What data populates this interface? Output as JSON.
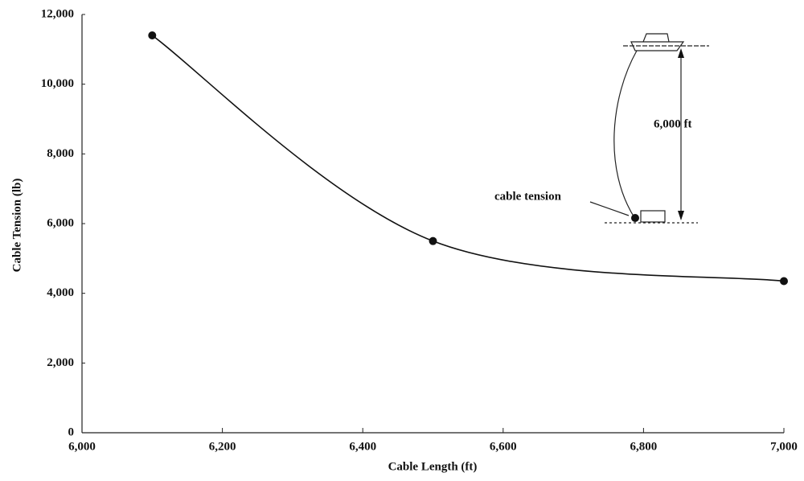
{
  "chart_data": {
    "type": "line",
    "x_label": "Cable Length (ft)",
    "y_label": "Cable Tension (lb)",
    "x": [
      6100,
      6500,
      7000
    ],
    "series": [
      {
        "color": "#111111",
        "values": [
          11400,
          5500,
          4350
        ]
      }
    ],
    "xlim": [
      6000,
      7000
    ],
    "xticks": [
      {
        "value": 6000,
        "label": "6,000"
      },
      {
        "value": 6200,
        "label": "6,200"
      },
      {
        "value": 6400,
        "label": "6,400"
      },
      {
        "value": 6600,
        "label": "6,600"
      },
      {
        "value": 6800,
        "label": "6,800"
      },
      {
        "value": 7000,
        "label": "7,000"
      }
    ],
    "ylim": [
      0,
      12000
    ],
    "yticks": [
      0,
      {
        "value": 2000,
        "label": "2,000"
      },
      {
        "value": 4000,
        "label": "4,000"
      },
      {
        "value": 6000,
        "label": "6,000"
      },
      {
        "value": 8000,
        "label": "8,000"
      },
      {
        "value": 10000,
        "label": "10,000"
      },
      {
        "value": 12000,
        "label": "12,000"
      }
    ],
    "annotations": [
      "6,000 ft",
      "cable tension"
    ]
  }
}
